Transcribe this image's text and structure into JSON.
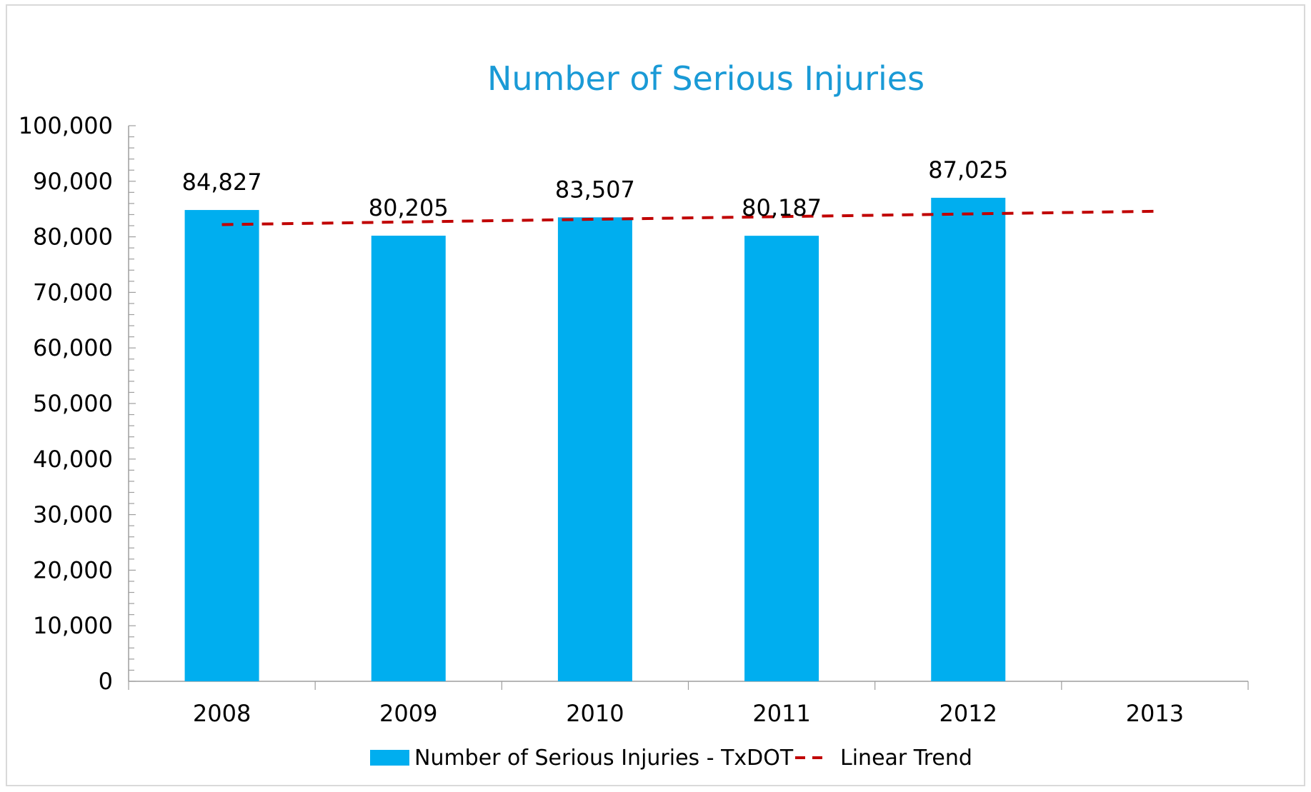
{
  "chart_data": {
    "type": "bar",
    "title": "Number of Serious Injuries",
    "categories": [
      "2008",
      "2009",
      "2010",
      "2011",
      "2012",
      "2013"
    ],
    "series": [
      {
        "name": "Number of Serious Injuries - TxDOT",
        "values": [
          84827,
          80205,
          83507,
          80187,
          87025,
          null
        ],
        "data_labels": [
          "84,827",
          "80,205",
          "83,507",
          "80,187",
          "87,025",
          ""
        ],
        "color": "#00aeef"
      },
      {
        "name": "Linear Trend",
        "type": "line",
        "style": "dashed",
        "color": "#c00000",
        "start": {
          "category": "2008",
          "value": 82200
        },
        "end": {
          "category": "2013",
          "value": 84600
        }
      }
    ],
    "ylim": [
      0,
      100000
    ],
    "y_ticks": [
      "0",
      "10,000",
      "20,000",
      "30,000",
      "40,000",
      "50,000",
      "60,000",
      "70,000",
      "80,000",
      "90,000",
      "100,000"
    ],
    "y_tick_values": [
      0,
      10000,
      20000,
      30000,
      40000,
      50000,
      60000,
      70000,
      80000,
      90000,
      100000
    ],
    "grid": false,
    "legend_position": "bottom-center"
  }
}
